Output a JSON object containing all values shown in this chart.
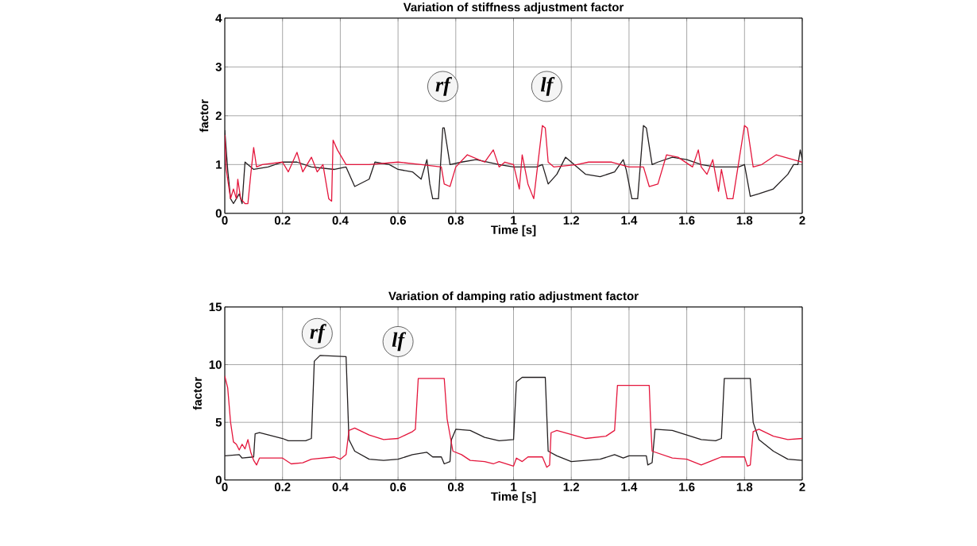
{
  "chart_data": [
    {
      "type": "line",
      "title": "Variation of stiffness adjustment factor",
      "xlabel": "Time [s]",
      "ylabel": "factor",
      "xlim": [
        0,
        2
      ],
      "ylim": [
        0,
        4
      ],
      "xticks": [
        0,
        0.2,
        0.4,
        0.6,
        0.8,
        1,
        1.2,
        1.4,
        1.6,
        1.8,
        2
      ],
      "yticks": [
        0,
        1,
        2,
        3,
        4
      ],
      "grid": true,
      "annotations": [
        {
          "text": "rf",
          "x": 0.755,
          "y": 2.6
        },
        {
          "text": "lf",
          "x": 1.115,
          "y": 2.6
        }
      ],
      "series": [
        {
          "color": "#231f20",
          "x": [
            0,
            0.01,
            0.02,
            0.03,
            0.04,
            0.05,
            0.06,
            0.07,
            0.1,
            0.15,
            0.2,
            0.25,
            0.3,
            0.38,
            0.42,
            0.45,
            0.5,
            0.52,
            0.57,
            0.6,
            0.65,
            0.68,
            0.7,
            0.71,
            0.72,
            0.74,
            0.755,
            0.76,
            0.78,
            0.82,
            0.87,
            0.95,
            1.0,
            1.08,
            1.1,
            1.12,
            1.15,
            1.18,
            1.25,
            1.3,
            1.35,
            1.38,
            1.39,
            1.41,
            1.43,
            1.45,
            1.46,
            1.48,
            1.5,
            1.55,
            1.6,
            1.65,
            1.7,
            1.78,
            1.8,
            1.82,
            1.85,
            1.9,
            1.95,
            1.97,
            1.985,
            1.993,
            2.0
          ],
          "values": [
            1.7,
            0.9,
            0.3,
            0.2,
            0.3,
            0.4,
            0.2,
            1.05,
            0.9,
            0.95,
            1.05,
            1.05,
            0.95,
            0.9,
            0.95,
            0.55,
            0.7,
            1.05,
            1.0,
            0.9,
            0.85,
            0.7,
            1.1,
            0.6,
            0.3,
            0.3,
            1.75,
            1.75,
            1.0,
            1.05,
            1.1,
            1.0,
            0.95,
            0.95,
            1.0,
            0.6,
            0.8,
            1.15,
            0.8,
            0.75,
            0.85,
            1.1,
            0.9,
            0.3,
            0.3,
            1.8,
            1.75,
            1.0,
            1.05,
            1.15,
            1.1,
            1.0,
            0.95,
            0.95,
            1.0,
            0.35,
            0.4,
            0.5,
            0.8,
            1.0,
            1.0,
            1.3,
            1.1
          ]
        },
        {
          "color": "#e4163c",
          "x": [
            0,
            0.005,
            0.015,
            0.02,
            0.03,
            0.04,
            0.045,
            0.055,
            0.07,
            0.08,
            0.09,
            0.1,
            0.11,
            0.13,
            0.2,
            0.22,
            0.25,
            0.27,
            0.28,
            0.3,
            0.32,
            0.34,
            0.36,
            0.37,
            0.375,
            0.39,
            0.42,
            0.5,
            0.6,
            0.68,
            0.75,
            0.76,
            0.78,
            0.8,
            0.84,
            0.9,
            0.93,
            0.95,
            0.97,
            1.0,
            1.02,
            1.03,
            1.05,
            1.07,
            1.08,
            1.1,
            1.11,
            1.12,
            1.14,
            1.22,
            1.26,
            1.34,
            1.4,
            1.45,
            1.47,
            1.5,
            1.53,
            1.57,
            1.62,
            1.64,
            1.65,
            1.67,
            1.69,
            1.71,
            1.72,
            1.74,
            1.76,
            1.8,
            1.81,
            1.83,
            1.86,
            1.91,
            2.0
          ],
          "values": [
            1.6,
            0.9,
            0.5,
            0.3,
            0.5,
            0.3,
            0.7,
            0.3,
            0.2,
            0.2,
            0.8,
            1.35,
            0.95,
            1.0,
            1.05,
            0.85,
            1.25,
            0.85,
            0.95,
            1.15,
            0.85,
            1.0,
            0.3,
            0.25,
            1.5,
            1.3,
            1.0,
            1.0,
            1.05,
            1.0,
            0.95,
            0.6,
            0.55,
            0.95,
            1.2,
            1.05,
            1.3,
            0.95,
            1.05,
            1.0,
            0.5,
            1.2,
            0.6,
            0.3,
            0.8,
            1.8,
            1.75,
            1.05,
            0.95,
            1.0,
            1.05,
            1.05,
            0.95,
            0.95,
            0.55,
            0.6,
            1.2,
            1.15,
            0.95,
            1.3,
            0.95,
            0.8,
            1.1,
            0.45,
            0.9,
            0.3,
            0.3,
            1.8,
            1.75,
            0.95,
            1.0,
            1.2,
            1.05
          ]
        }
      ]
    },
    {
      "type": "line",
      "title": "Variation of damping ratio adjustment factor",
      "xlabel": "Time [s]",
      "ylabel": "factor",
      "xlim": [
        0,
        2
      ],
      "ylim": [
        0,
        15
      ],
      "xticks": [
        0,
        0.2,
        0.4,
        0.6,
        0.8,
        1,
        1.2,
        1.4,
        1.6,
        1.8,
        2
      ],
      "yticks": [
        0,
        5,
        10,
        15
      ],
      "grid": true,
      "annotations": [
        {
          "text": "rf",
          "x": 0.32,
          "y": 12.7
        },
        {
          "text": "lf",
          "x": 0.6,
          "y": 12.0
        }
      ],
      "series": [
        {
          "color": "#231f20",
          "x": [
            0,
            0.05,
            0.06,
            0.1,
            0.105,
            0.12,
            0.2,
            0.22,
            0.28,
            0.3,
            0.31,
            0.33,
            0.42,
            0.43,
            0.45,
            0.5,
            0.55,
            0.6,
            0.65,
            0.7,
            0.72,
            0.75,
            0.76,
            0.78,
            0.785,
            0.8,
            0.85,
            0.9,
            0.95,
            1.0,
            1.01,
            1.03,
            1.11,
            1.12,
            1.15,
            1.2,
            1.3,
            1.35,
            1.38,
            1.4,
            1.46,
            1.465,
            1.48,
            1.49,
            1.55,
            1.65,
            1.7,
            1.72,
            1.73,
            1.82,
            1.83,
            1.85,
            1.9,
            1.95,
            2.0
          ],
          "values": [
            2.1,
            2.2,
            1.9,
            2.0,
            4.0,
            4.1,
            3.6,
            3.4,
            3.4,
            3.6,
            10.3,
            10.8,
            10.7,
            3.5,
            2.5,
            1.8,
            1.7,
            1.8,
            2.2,
            2.4,
            2.0,
            2.0,
            1.4,
            1.6,
            3.5,
            4.4,
            4.3,
            3.7,
            3.4,
            3.5,
            8.5,
            8.9,
            8.9,
            2.5,
            2.1,
            1.6,
            1.8,
            2.2,
            1.9,
            2.1,
            2.1,
            1.3,
            1.5,
            4.4,
            4.3,
            3.5,
            3.4,
            3.6,
            8.8,
            8.8,
            5.0,
            3.5,
            2.5,
            1.8,
            1.7
          ]
        },
        {
          "color": "#e4163c",
          "x": [
            0,
            0.01,
            0.02,
            0.03,
            0.04,
            0.05,
            0.06,
            0.07,
            0.08,
            0.09,
            0.1,
            0.11,
            0.12,
            0.2,
            0.23,
            0.27,
            0.3,
            0.38,
            0.4,
            0.42,
            0.43,
            0.45,
            0.5,
            0.55,
            0.6,
            0.65,
            0.66,
            0.67,
            0.76,
            0.77,
            0.79,
            0.82,
            0.85,
            0.9,
            0.93,
            0.95,
            1.0,
            1.01,
            1.03,
            1.05,
            1.1,
            1.115,
            1.125,
            1.13,
            1.15,
            1.25,
            1.32,
            1.35,
            1.36,
            1.47,
            1.475,
            1.48,
            1.55,
            1.6,
            1.65,
            1.7,
            1.72,
            1.8,
            1.81,
            1.82,
            1.83,
            1.85,
            1.9,
            1.95,
            2.0
          ],
          "values": [
            9.0,
            8.0,
            5.0,
            3.3,
            3.1,
            2.6,
            3.1,
            2.7,
            3.5,
            2.4,
            1.7,
            1.3,
            1.9,
            1.9,
            1.4,
            1.5,
            1.8,
            2.0,
            1.8,
            2.2,
            4.3,
            4.5,
            3.9,
            3.5,
            3.6,
            4.2,
            4.4,
            8.8,
            8.8,
            5.3,
            2.5,
            2.2,
            1.7,
            1.6,
            1.4,
            1.6,
            1.2,
            1.9,
            1.6,
            2.0,
            2.0,
            1.1,
            1.3,
            4.1,
            4.3,
            3.6,
            3.8,
            4.3,
            8.2,
            8.2,
            4.9,
            2.5,
            1.9,
            1.8,
            1.3,
            1.8,
            2.0,
            2.0,
            1.2,
            1.3,
            4.2,
            4.4,
            3.8,
            3.5,
            3.6
          ]
        }
      ]
    }
  ]
}
